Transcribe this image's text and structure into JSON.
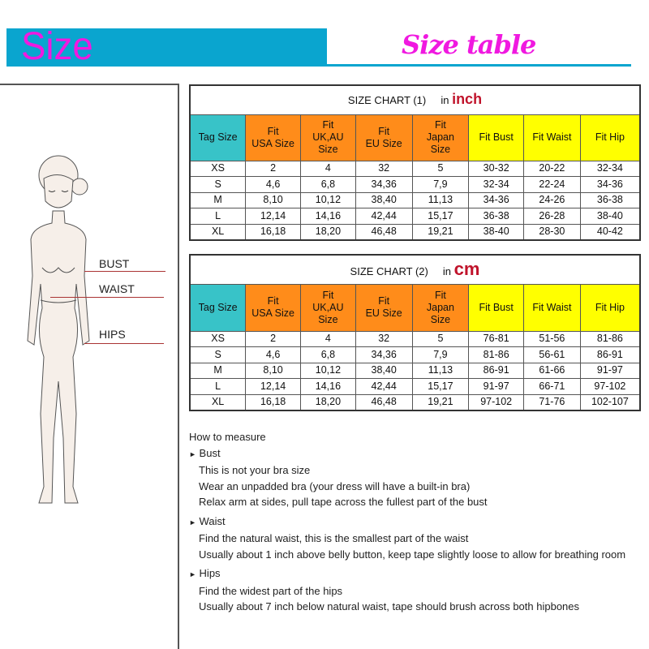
{
  "header": {
    "title": "Size",
    "subtitle": "Size table",
    "accent": "#0aa5cf",
    "title_color": "#f019e0"
  },
  "figure": {
    "labels": [
      "BUST",
      "WAIST",
      "HIPS"
    ]
  },
  "columns": [
    {
      "lines": [
        "Tag Size"
      ],
      "color": "tag"
    },
    {
      "lines": [
        "Fit",
        "USA Size"
      ],
      "color": "orange"
    },
    {
      "lines": [
        "Fit",
        "UK,AU",
        "Size"
      ],
      "color": "orange"
    },
    {
      "lines": [
        "Fit",
        "EU Size"
      ],
      "color": "orange"
    },
    {
      "lines": [
        "Fit",
        "Japan",
        "Size"
      ],
      "color": "orange"
    },
    {
      "lines": [
        "Fit Bust"
      ],
      "color": "yellow"
    },
    {
      "lines": [
        "Fit Waist"
      ],
      "color": "yellow"
    },
    {
      "lines": [
        "Fit Hip"
      ],
      "color": "yellow"
    }
  ],
  "tables": [
    {
      "title": "SIZE CHART (1)",
      "unit_prefix": "in",
      "unit": "inch",
      "rows": [
        [
          "XS",
          "2",
          "4",
          "32",
          "5",
          "30-32",
          "20-22",
          "32-34"
        ],
        [
          "S",
          "4,6",
          "6,8",
          "34,36",
          "7,9",
          "32-34",
          "22-24",
          "34-36"
        ],
        [
          "M",
          "8,10",
          "10,12",
          "38,40",
          "11,13",
          "34-36",
          "24-26",
          "36-38"
        ],
        [
          "L",
          "12,14",
          "14,16",
          "42,44",
          "15,17",
          "36-38",
          "26-28",
          "38-40"
        ],
        [
          "XL",
          "16,18",
          "18,20",
          "46,48",
          "19,21",
          "38-40",
          "28-30",
          "40-42"
        ]
      ]
    },
    {
      "title": "SIZE CHART (2)",
      "unit_prefix": "in",
      "unit": "cm",
      "rows": [
        [
          "XS",
          "2",
          "4",
          "32",
          "5",
          "76-81",
          "51-56",
          "81-86"
        ],
        [
          "S",
          "4,6",
          "6,8",
          "34,36",
          "7,9",
          "81-86",
          "56-61",
          "86-91"
        ],
        [
          "M",
          "8,10",
          "10,12",
          "38,40",
          "11,13",
          "86-91",
          "61-66",
          "91-97"
        ],
        [
          "L",
          "12,14",
          "14,16",
          "42,44",
          "15,17",
          "91-97",
          "66-71",
          "97-102"
        ],
        [
          "XL",
          "16,18",
          "18,20",
          "46,48",
          "19,21",
          "97-102",
          "71-76",
          "102-107"
        ]
      ]
    }
  ],
  "how_to": {
    "title": "How to measure",
    "sections": [
      {
        "heading": "Bust",
        "lines": [
          "This is not your bra size",
          "Wear an unpadded bra (your dress will have a built-in bra)",
          "Relax arm at sides, pull tape across the fullest part of the bust"
        ]
      },
      {
        "heading": "Waist",
        "lines": [
          "Find the natural waist, this is the smallest part of the waist",
          "Usually about 1 inch above belly button, keep tape slightly loose to allow for breathing room"
        ]
      },
      {
        "heading": "Hips",
        "lines": [
          "Find the widest part of the hips",
          "Usually about 7 inch below natural waist, tape should brush across both hipbones"
        ]
      }
    ]
  }
}
